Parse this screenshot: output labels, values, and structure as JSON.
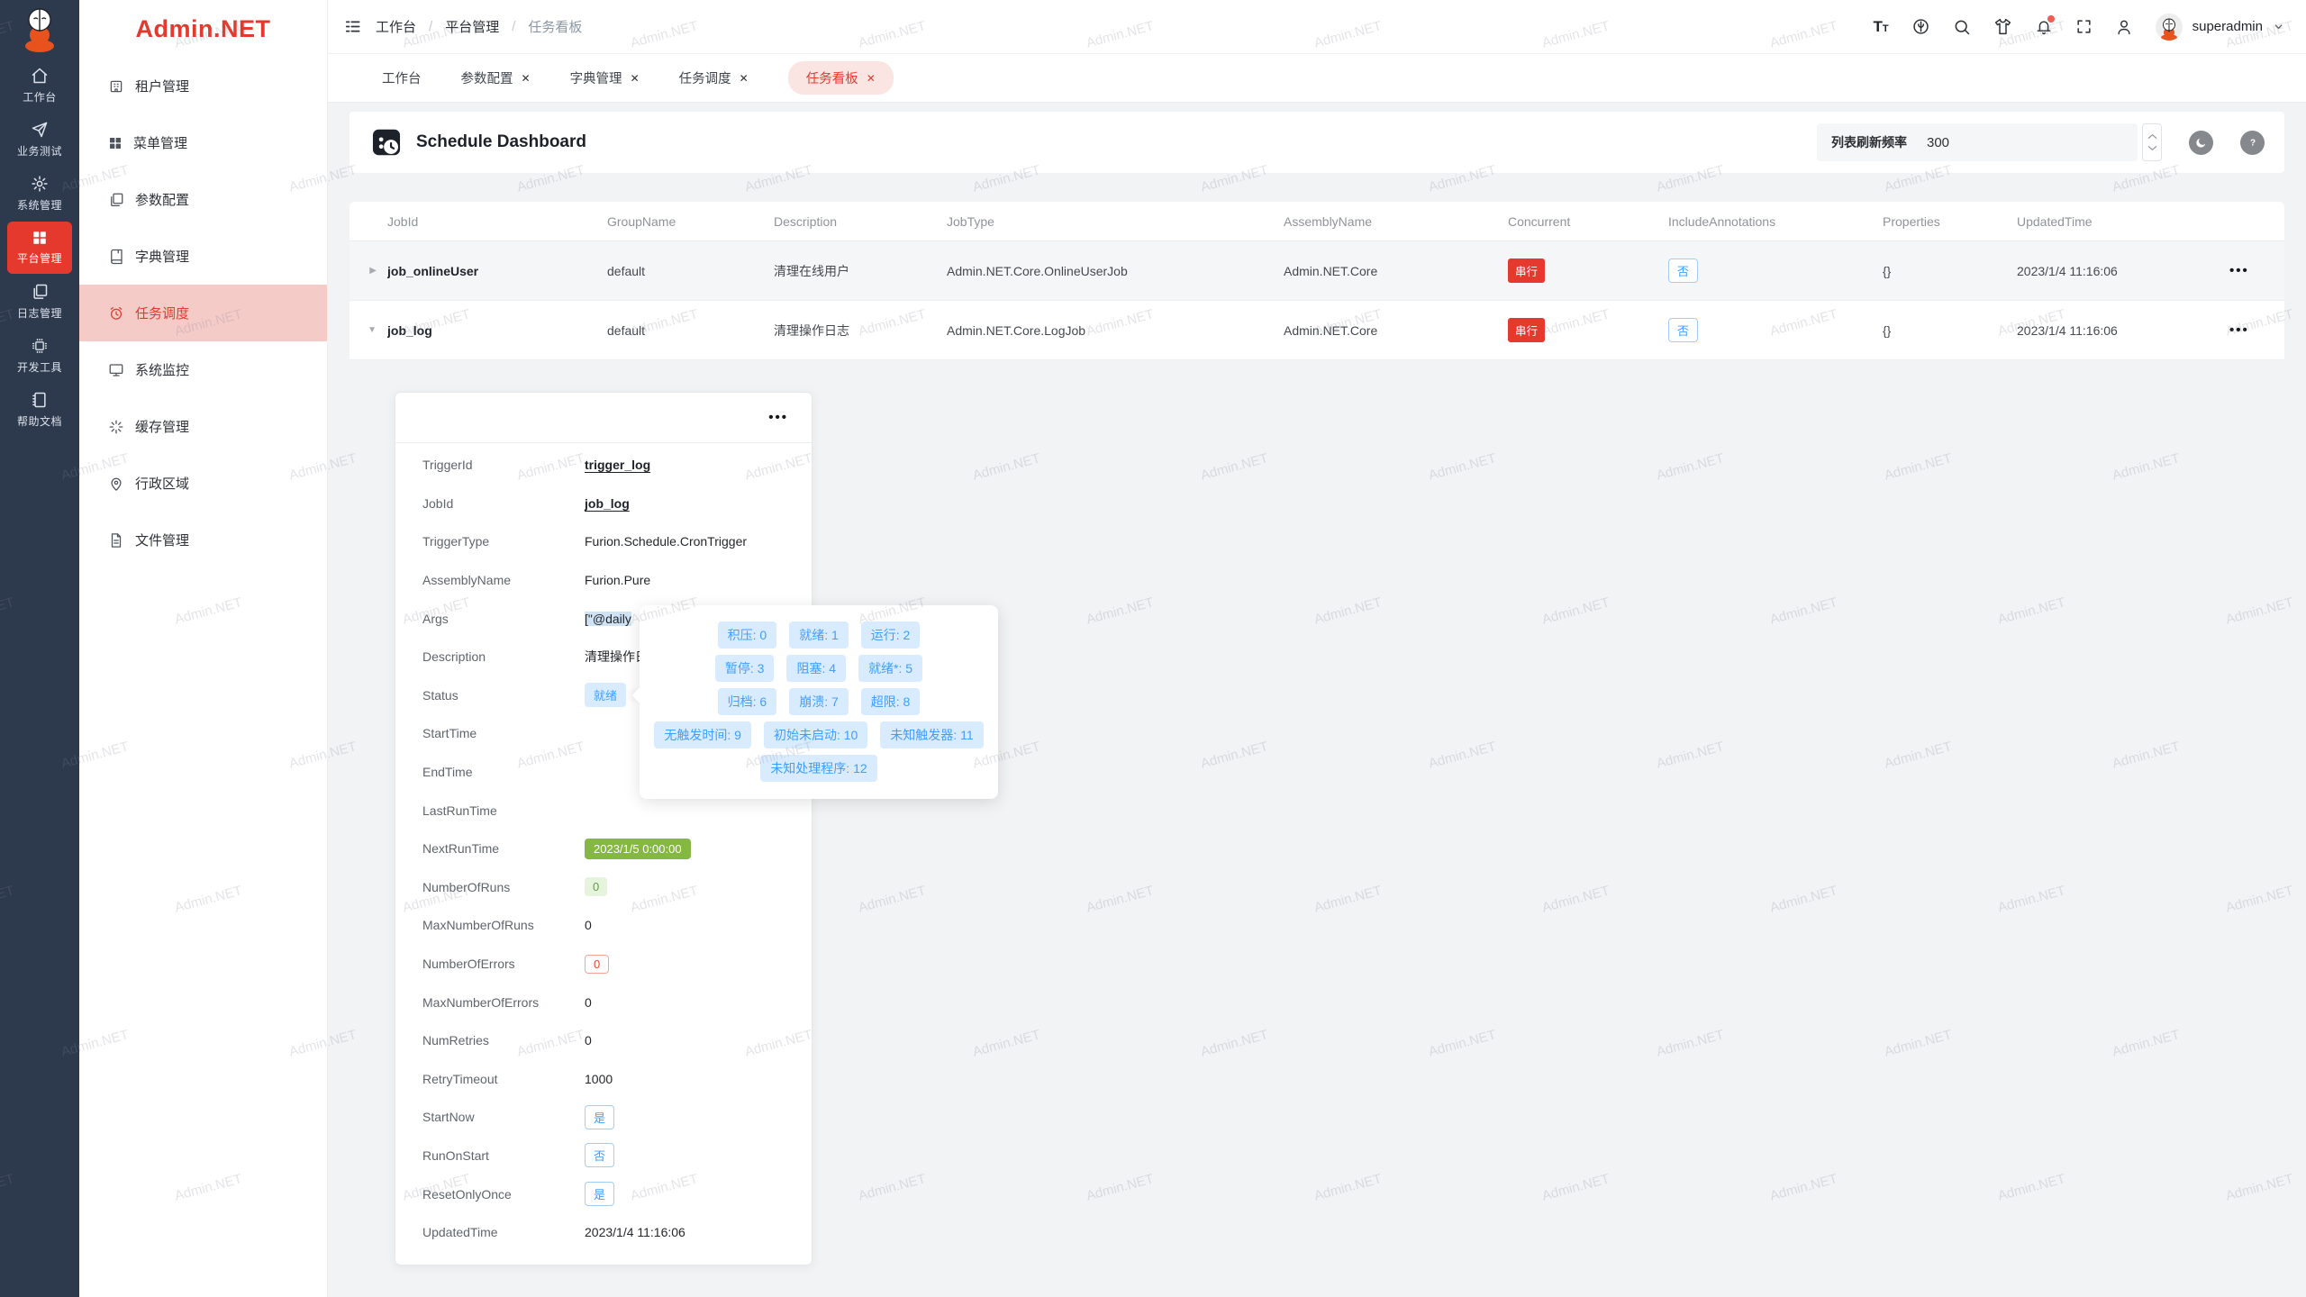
{
  "brand": {
    "logo_text": "Admin.NET",
    "accent_color": "#e6392e"
  },
  "watermark": {
    "text": "Admin.NET"
  },
  "rail": {
    "items": [
      {
        "label": "工作台",
        "icon": "home-icon",
        "active": false
      },
      {
        "label": "业务测试",
        "icon": "paper-plane-icon",
        "active": false
      },
      {
        "label": "系统管理",
        "icon": "gear-icon",
        "active": false
      },
      {
        "label": "平台管理",
        "icon": "grid-icon",
        "active": true
      },
      {
        "label": "日志管理",
        "icon": "copy-docs-icon",
        "active": false
      },
      {
        "label": "开发工具",
        "icon": "chip-icon",
        "active": false
      },
      {
        "label": "帮助文档",
        "icon": "notebook-icon",
        "active": false
      }
    ]
  },
  "sidebar": {
    "items": [
      {
        "label": "租户管理",
        "icon": "building-icon",
        "active": false
      },
      {
        "label": "菜单管理",
        "icon": "grid-icon",
        "active": false
      },
      {
        "label": "参数配置",
        "icon": "copy-docs-icon",
        "active": false
      },
      {
        "label": "字典管理",
        "icon": "book-icon",
        "active": false
      },
      {
        "label": "任务调度",
        "icon": "alarm-clock-icon",
        "active": true
      },
      {
        "label": "系统监控",
        "icon": "monitor-icon",
        "active": false
      },
      {
        "label": "缓存管理",
        "icon": "spinner-icon",
        "active": false
      },
      {
        "label": "行政区域",
        "icon": "location-pin-icon",
        "active": false
      },
      {
        "label": "文件管理",
        "icon": "file-icon",
        "active": false
      }
    ]
  },
  "topbar": {
    "breadcrumb": [
      "工作台",
      "平台管理",
      "任务看板"
    ],
    "username": "superadmin"
  },
  "tabs": [
    {
      "label": "工作台"
    },
    {
      "label": "参数配置"
    },
    {
      "label": "字典管理"
    },
    {
      "label": "任务调度"
    },
    {
      "label": "任务看板"
    }
  ],
  "page": {
    "title": "Schedule Dashboard",
    "refresh_label": "列表刷新频率",
    "refresh_value": "300"
  },
  "table": {
    "columns": [
      "JobId",
      "GroupName",
      "Description",
      "JobType",
      "AssemblyName",
      "Concurrent",
      "IncludeAnnotations",
      "Properties",
      "UpdatedTime"
    ],
    "rows": [
      {
        "job_id": "job_onlineUser",
        "group": "default",
        "description": "清理在线用户",
        "job_type": "Admin.NET.Core.OnlineUserJob",
        "assembly": "Admin.NET.Core",
        "concurrent": "串行",
        "include_annotations": "否",
        "properties": "{}",
        "updated_time": "2023/1/4 11:16:06"
      },
      {
        "job_id": "job_log",
        "group": "default",
        "description": "清理操作日志",
        "job_type": "Admin.NET.Core.LogJob",
        "assembly": "Admin.NET.Core",
        "concurrent": "串行",
        "include_annotations": "否",
        "properties": "{}",
        "updated_time": "2023/1/4 11:16:06"
      }
    ]
  },
  "detail": {
    "rows": [
      {
        "label": "TriggerId",
        "value": "trigger_log"
      },
      {
        "label": "JobId",
        "value": "job_log"
      },
      {
        "label": "TriggerType",
        "value": "Furion.Schedule.CronTrigger"
      },
      {
        "label": "AssemblyName",
        "value": "Furion.Pure"
      },
      {
        "label": "Args",
        "value": "[\"@daily"
      },
      {
        "label": "Description",
        "value": "清理操作日志"
      },
      {
        "label": "Status",
        "value": "就绪"
      },
      {
        "label": "StartTime",
        "value": ""
      },
      {
        "label": "EndTime",
        "value": ""
      },
      {
        "label": "LastRunTime",
        "value": ""
      },
      {
        "label": "NextRunTime",
        "value": "2023/1/5 0:00:00"
      },
      {
        "label": "NumberOfRuns",
        "value": "0"
      },
      {
        "label": "MaxNumberOfRuns",
        "value": "0"
      },
      {
        "label": "NumberOfErrors",
        "value": "0"
      },
      {
        "label": "MaxNumberOfErrors",
        "value": "0"
      },
      {
        "label": "NumRetries",
        "value": "0"
      },
      {
        "label": "RetryTimeout",
        "value": "1000"
      },
      {
        "label": "StartNow",
        "value": "是"
      },
      {
        "label": "RunOnStart",
        "value": "否"
      },
      {
        "label": "ResetOnlyOnce",
        "value": "是"
      },
      {
        "label": "UpdatedTime",
        "value": "2023/1/4 11:16:06"
      }
    ]
  },
  "tooltip": {
    "rows": [
      [
        "积压: 0",
        "就绪: 1",
        "运行: 2"
      ],
      [
        "暂停: 3",
        "阻塞: 4",
        "就绪*: 5"
      ],
      [
        "归档: 6",
        "崩溃: 7",
        "超限: 8"
      ],
      [
        "无触发时间: 9",
        "初始未启动: 10",
        "未知触发器: 11"
      ],
      [
        "未知处理程序: 12"
      ]
    ]
  }
}
